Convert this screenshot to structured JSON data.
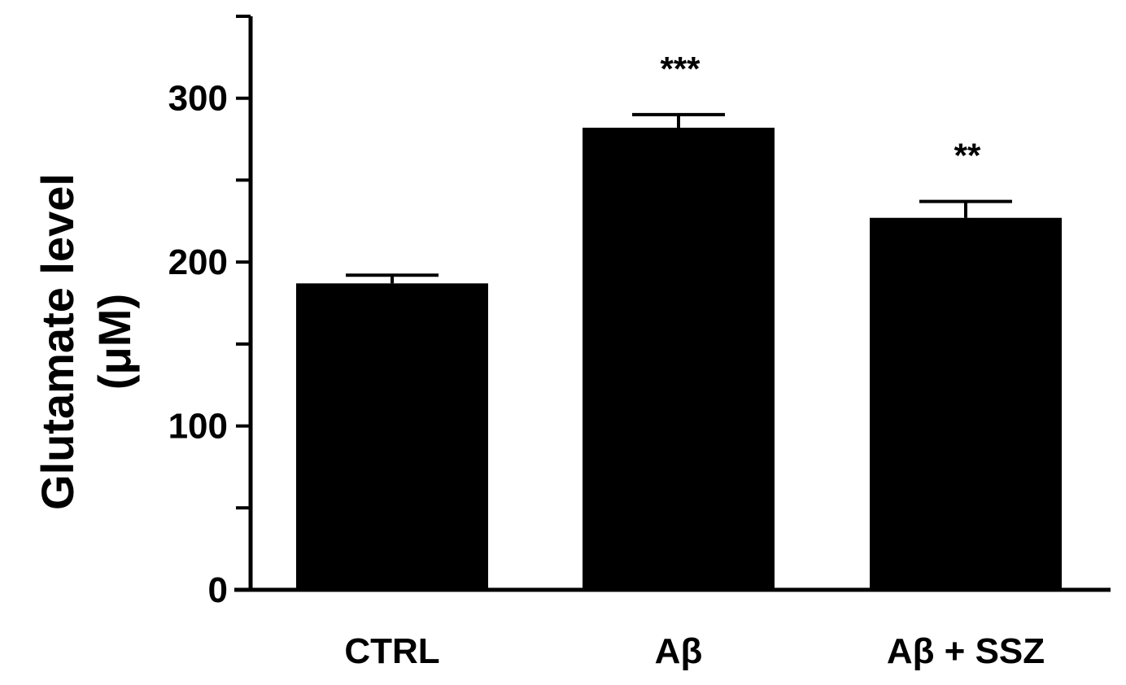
{
  "chart_data": {
    "type": "bar",
    "categories": [
      "CTRL",
      "Aβ",
      "Aβ + SSZ"
    ],
    "values": [
      187,
      282,
      227
    ],
    "errors": [
      5,
      8,
      10
    ],
    "significance": [
      "",
      "***",
      "**"
    ],
    "ylabel_line1": "Glutamate level",
    "ylabel_line2": "(μM)",
    "ylim": [
      0,
      350
    ],
    "yticks": [
      0,
      50,
      100,
      150,
      200,
      250,
      300,
      350
    ],
    "ytick_labels": [
      "0",
      "",
      "100",
      "",
      "200",
      "",
      "300",
      ""
    ],
    "bar_color": "#000000",
    "grid": false
  }
}
